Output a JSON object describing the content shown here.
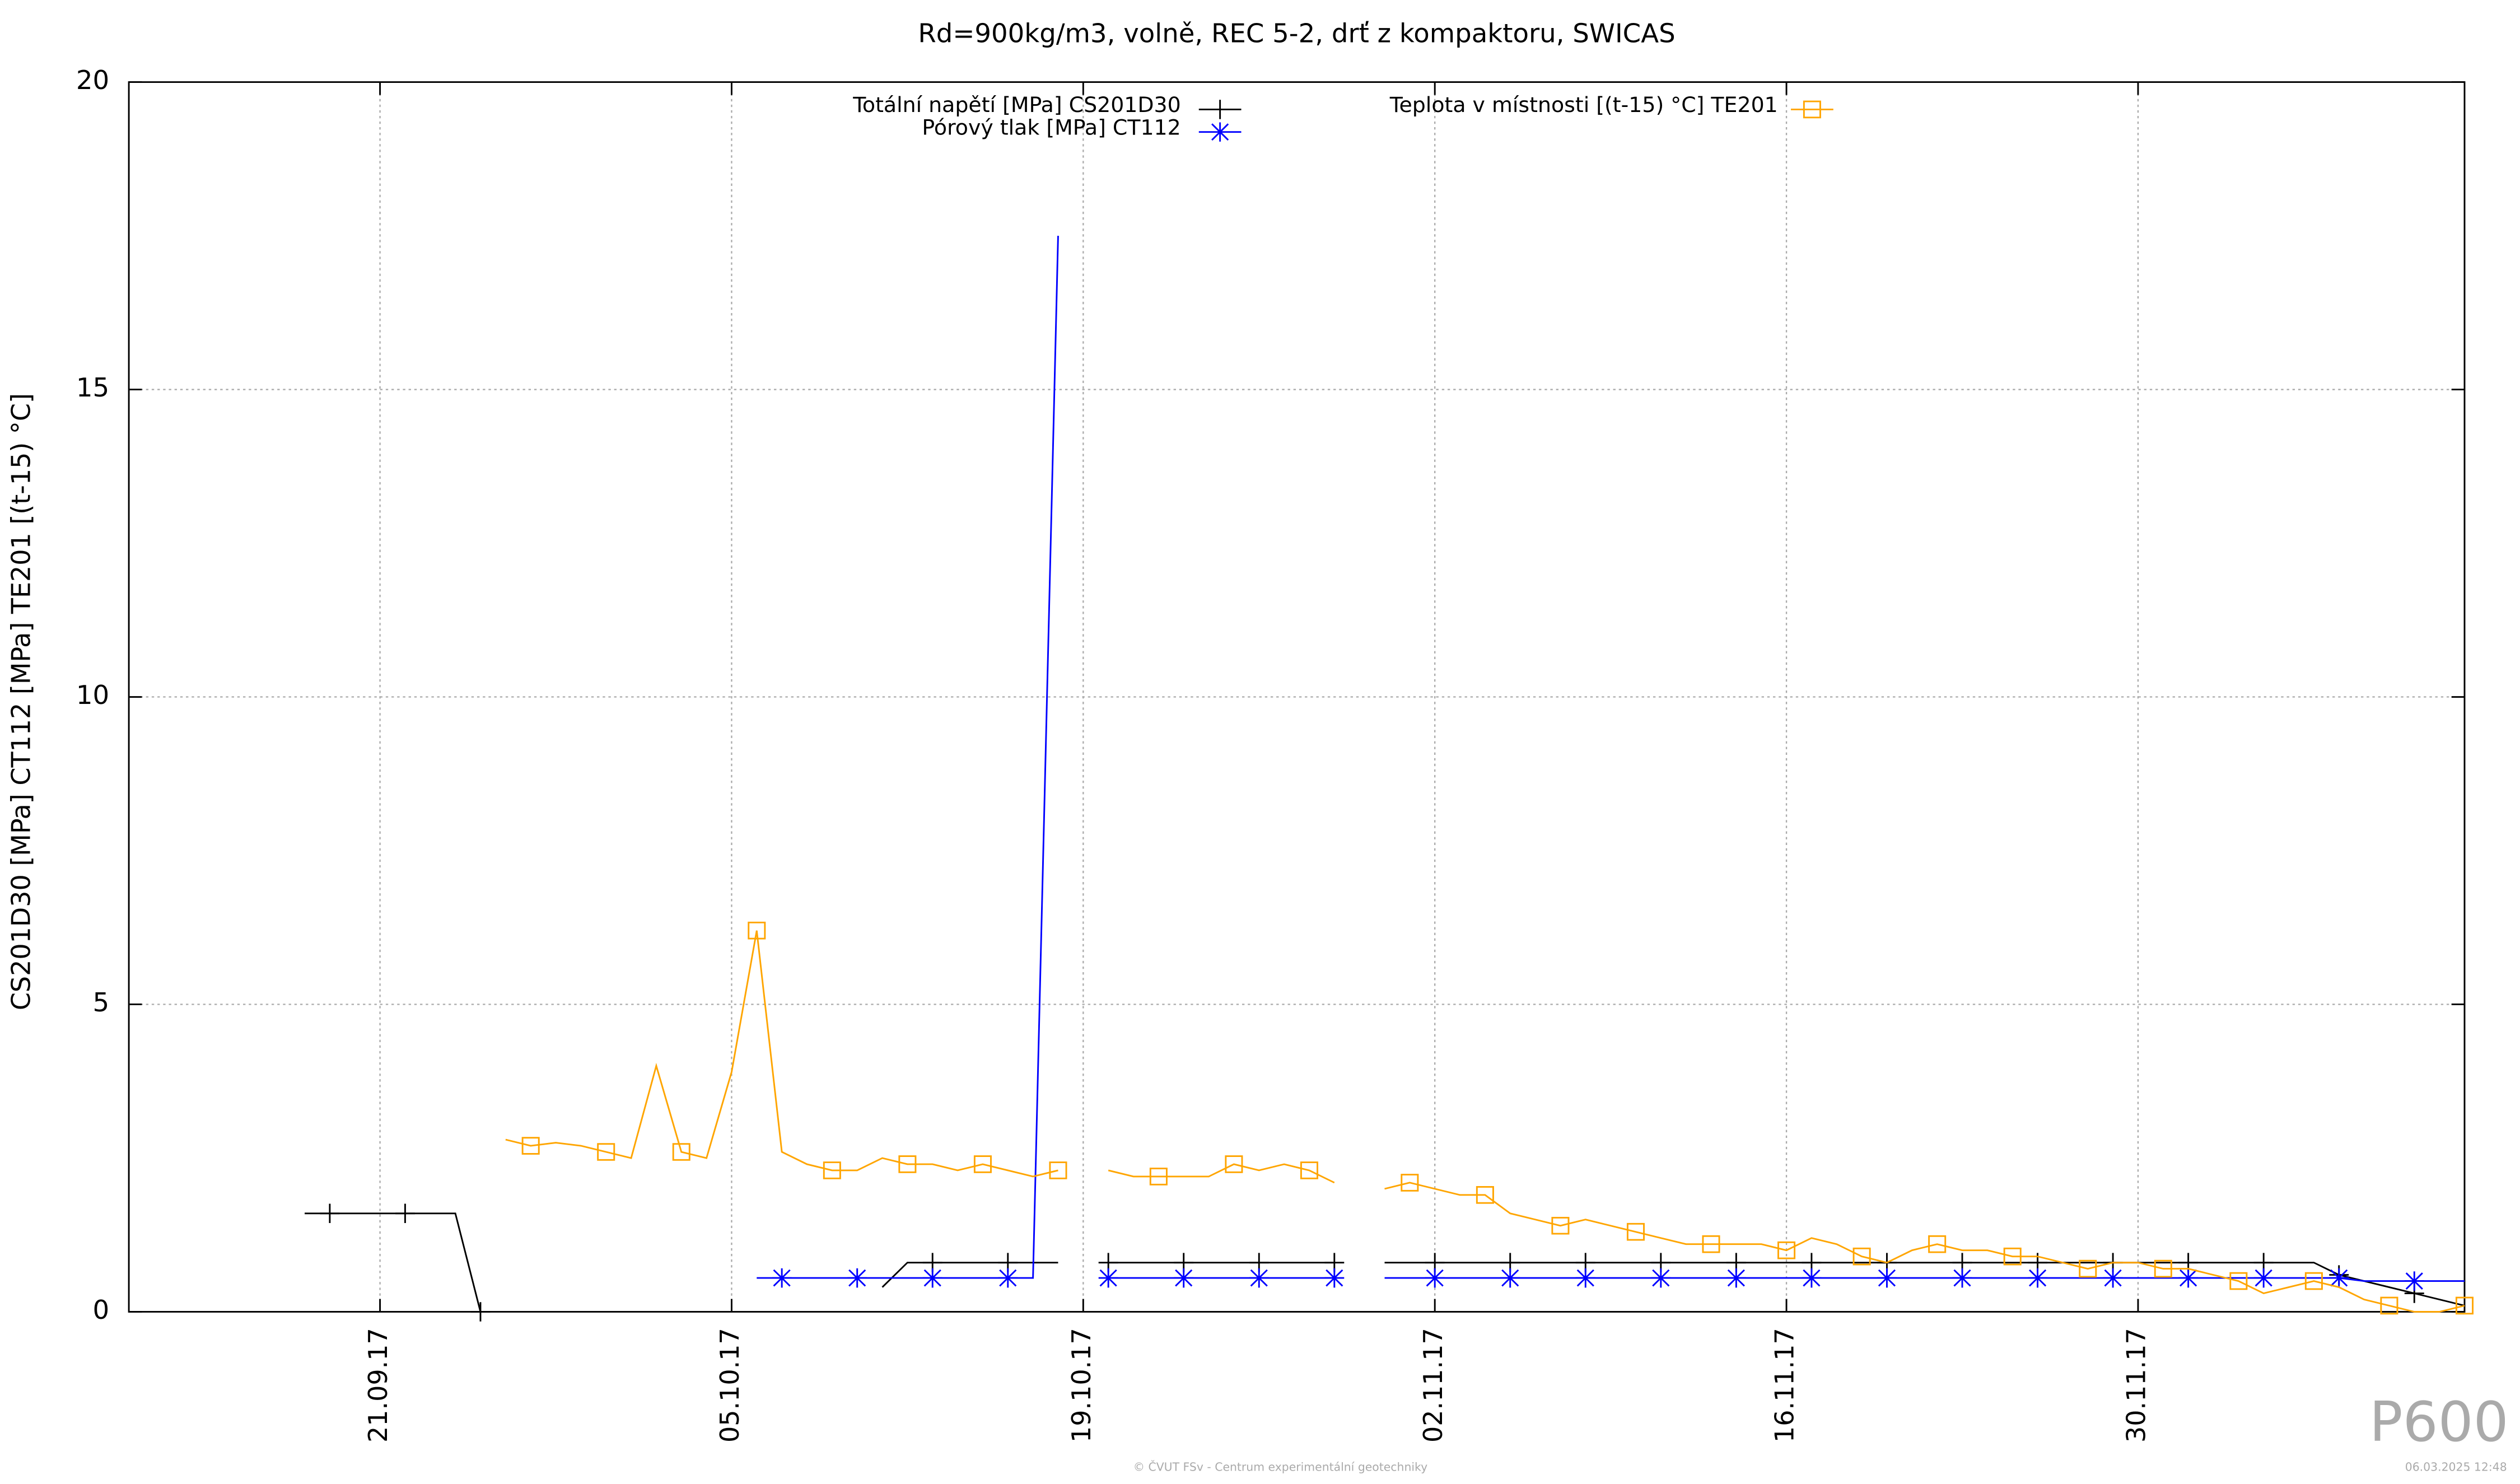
{
  "chart_data": {
    "type": "line",
    "title": "Rd=900kg/m3, volně, REC 5-2, drť z kompaktoru, SWICAS",
    "y_label": "CS201D30 [MPa] CT112 [MPa] TE201 [(t-15) °C]",
    "x": [
      "2017-09-18",
      "2017-09-19",
      "2017-09-20",
      "2017-09-21",
      "2017-09-22",
      "2017-09-23",
      "2017-09-24",
      "2017-09-25",
      "2017-09-26",
      "2017-09-27",
      "2017-09-28",
      "2017-09-29",
      "2017-09-30",
      "2017-10-01",
      "2017-10-02",
      "2017-10-03",
      "2017-10-04",
      "2017-10-05",
      "2017-10-06",
      "2017-10-07",
      "2017-10-08",
      "2017-10-09",
      "2017-10-10",
      "2017-10-11",
      "2017-10-12",
      "2017-10-13",
      "2017-10-14",
      "2017-10-15",
      "2017-10-16",
      "2017-10-17",
      "2017-10-18",
      "2017-10-19",
      "2017-10-20",
      "2017-10-21",
      "2017-10-22",
      "2017-10-23",
      "2017-10-24",
      "2017-10-25",
      "2017-10-26",
      "2017-10-27",
      "2017-10-28",
      "2017-10-29",
      "2017-10-30",
      "2017-10-31",
      "2017-11-01",
      "2017-11-02",
      "2017-11-03",
      "2017-11-04",
      "2017-11-05",
      "2017-11-06",
      "2017-11-07",
      "2017-11-08",
      "2017-11-09",
      "2017-11-10",
      "2017-11-11",
      "2017-11-12",
      "2017-11-13",
      "2017-11-14",
      "2017-11-15",
      "2017-11-16",
      "2017-11-17",
      "2017-11-18",
      "2017-11-19",
      "2017-11-20",
      "2017-11-21",
      "2017-11-22",
      "2017-11-23",
      "2017-11-24",
      "2017-11-25",
      "2017-11-26",
      "2017-11-27",
      "2017-11-28",
      "2017-11-29",
      "2017-11-30",
      "2017-12-01",
      "2017-12-02",
      "2017-12-03",
      "2017-12-04",
      "2017-12-05",
      "2017-12-06",
      "2017-12-07",
      "2017-12-08",
      "2017-12-09",
      "2017-12-10",
      "2017-12-11",
      "2017-12-12",
      "2017-12-13"
    ],
    "series": [
      {
        "name": "Totální napětí [MPa] CS201D30",
        "color": "#000000",
        "marker": "plus",
        "values": [
          1.6,
          1.6,
          1.6,
          1.6,
          1.6,
          1.6,
          1.6,
          0,
          null,
          null,
          null,
          null,
          null,
          null,
          null,
          null,
          null,
          null,
          null,
          null,
          null,
          null,
          null,
          0.4,
          0.8,
          0.8,
          0.8,
          0.8,
          0.8,
          0.8,
          0.8,
          null,
          0.8,
          0.8,
          0.8,
          0.8,
          0.8,
          0.8,
          0.8,
          0.8,
          0.8,
          0.8,
          null,
          0.8,
          0.8,
          0.8,
          0.8,
          0.8,
          0.8,
          0.8,
          0.8,
          0.8,
          0.8,
          0.8,
          0.8,
          0.8,
          0.8,
          0.8,
          0.8,
          0.8,
          0.8,
          0.8,
          0.8,
          0.8,
          0.8,
          0.8,
          0.8,
          0.8,
          0.8,
          0.8,
          0.8,
          0.8,
          0.8,
          0.8,
          0.8,
          0.8,
          0.8,
          0.8,
          0.8,
          0.8,
          0.8,
          0.6,
          0.5,
          0.4,
          0.3,
          0.2,
          0.1
        ]
      },
      {
        "name": "Pórový tlak [MPa] CT112",
        "color": "#0000ff",
        "marker": "star",
        "values": [
          null,
          null,
          null,
          null,
          null,
          null,
          null,
          null,
          null,
          null,
          null,
          null,
          null,
          null,
          null,
          null,
          null,
          null,
          0.55,
          0.55,
          0.55,
          0.55,
          0.55,
          0.55,
          0.55,
          0.55,
          0.55,
          0.55,
          0.55,
          0.55,
          17.5,
          null,
          0.55,
          0.55,
          0.55,
          0.55,
          0.55,
          0.55,
          0.55,
          0.55,
          0.55,
          0.55,
          null,
          0.55,
          0.55,
          0.55,
          0.55,
          0.55,
          0.55,
          0.55,
          0.55,
          0.55,
          0.55,
          0.55,
          0.55,
          0.55,
          0.55,
          0.55,
          0.55,
          0.55,
          0.55,
          0.55,
          0.55,
          0.55,
          0.55,
          0.55,
          0.55,
          0.55,
          0.55,
          0.55,
          0.55,
          0.55,
          0.55,
          0.55,
          0.55,
          0.55,
          0.55,
          0.55,
          0.55,
          0.55,
          0.55,
          0.55,
          0.5,
          0.5,
          0.5,
          0.5,
          0.5
        ]
      },
      {
        "name": "Teplota v místnosti [(t-15) °C] TE201",
        "color": "#ffa500",
        "marker": "square",
        "values": [
          null,
          null,
          null,
          null,
          null,
          null,
          null,
          null,
          2.8,
          2.7,
          2.75,
          2.7,
          2.6,
          2.5,
          4.0,
          2.6,
          2.5,
          3.9,
          6.2,
          2.6,
          2.4,
          2.3,
          2.3,
          2.5,
          2.4,
          2.4,
          2.3,
          2.4,
          2.3,
          2.2,
          2.3,
          null,
          2.3,
          2.2,
          2.2,
          2.2,
          2.2,
          2.4,
          2.3,
          2.4,
          2.3,
          2.1,
          null,
          2.0,
          2.1,
          2.0,
          1.9,
          1.9,
          1.6,
          1.5,
          1.4,
          1.5,
          1.4,
          1.3,
          1.2,
          1.1,
          1.1,
          1.1,
          1.1,
          1.0,
          1.2,
          1.1,
          0.9,
          0.8,
          1.0,
          1.1,
          1.0,
          1.0,
          0.9,
          0.9,
          0.8,
          0.7,
          0.8,
          0.8,
          0.7,
          0.7,
          0.6,
          0.5,
          0.3,
          0.4,
          0.5,
          0.4,
          0.2,
          0.1,
          0,
          0,
          0.1
        ]
      }
    ],
    "xlim": [
      "2017-09-11",
      "2017-12-13"
    ],
    "xticks": [
      {
        "value": "2017-09-21",
        "label": "21.09.17"
      },
      {
        "value": "2017-10-05",
        "label": "05.10.17"
      },
      {
        "value": "2017-10-19",
        "label": "19.10.17"
      },
      {
        "value": "2017-11-02",
        "label": "02.11.17"
      },
      {
        "value": "2017-11-16",
        "label": "16.11.17"
      },
      {
        "value": "2017-11-30",
        "label": "30.11.17"
      }
    ],
    "ylim": [
      0,
      20
    ],
    "yticks": [
      0,
      5,
      10,
      15,
      20
    ],
    "grid": true,
    "legend": "top",
    "watermark": "P600",
    "footer": "© ČVUT FSv - Centrum experimentální geotechniky",
    "timestamp": "06.03.2025 12:48"
  }
}
